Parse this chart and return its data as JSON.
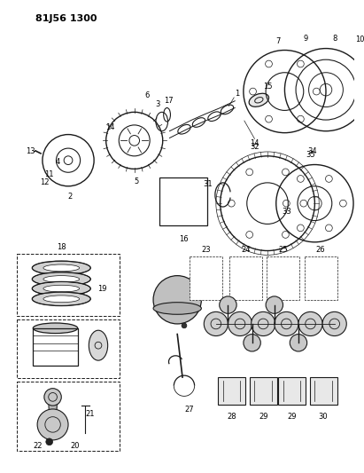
{
  "title": "81J56 1300",
  "bg": "#ffffff",
  "lc": "#1a1a1a",
  "fw": 4.11,
  "fh": 5.33,
  "dpi": 100
}
